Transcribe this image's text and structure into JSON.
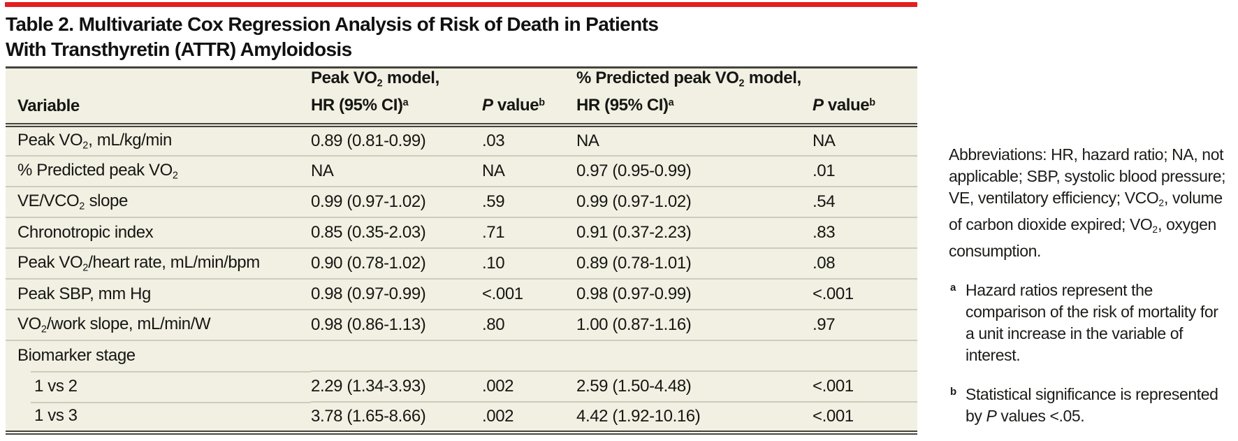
{
  "page": {
    "accent_red": "#e3201f",
    "table_bg": "#f2f0e3",
    "border_dark": "#45443c",
    "separator": "#cdcbbc"
  },
  "table": {
    "title": "Table 2. Multivariate Cox Regression Analysis of Risk of Death in Patients\nWith Transthyretin (ATTR) Amyloidosis",
    "columns": [
      {
        "label": "Variable"
      },
      {
        "label": "Peak VO~2~ model,\nHR (95% CI)^a^"
      },
      {
        "label": "*P* value^b^"
      },
      {
        "label": "% Predicted peak VO~2~ model,\nHR (95% CI)^a^"
      },
      {
        "label": "*P* value^b^"
      }
    ],
    "rows": [
      {
        "label": "Peak VO~2~, mL/kg/min",
        "group": false,
        "indent": false,
        "values": [
          "0.89 (0.81-0.99)",
          ".03",
          "NA",
          "NA"
        ]
      },
      {
        "label": "% Predicted peak VO~2~",
        "group": false,
        "indent": false,
        "values": [
          "NA",
          "NA",
          "0.97 (0.95-0.99)",
          ".01"
        ]
      },
      {
        "label": "VE/VCO~2~ slope",
        "group": false,
        "indent": false,
        "values": [
          "0.99 (0.97-1.02)",
          ".59",
          "0.99 (0.97-1.02)",
          ".54"
        ]
      },
      {
        "label": "Chronotropic index",
        "group": false,
        "indent": false,
        "values": [
          "0.85 (0.35-2.03)",
          ".71",
          "0.91 (0.37-2.23)",
          ".83"
        ]
      },
      {
        "label": "Peak VO~2~/heart rate, mL/min/bpm",
        "group": false,
        "indent": false,
        "values": [
          "0.90 (0.78-1.02)",
          ".10",
          "0.89 (0.78-1.01)",
          ".08"
        ]
      },
      {
        "label": "Peak SBP, mm Hg",
        "group": false,
        "indent": false,
        "values": [
          "0.98 (0.97-0.99)",
          "<.001",
          "0.98 (0.97-0.99)",
          "<.001"
        ]
      },
      {
        "label": "VO~2~/work slope, mL/min/W",
        "group": false,
        "indent": false,
        "values": [
          "0.98 (0.86-1.13)",
          ".80",
          "1.00 (0.87-1.16)",
          ".97"
        ]
      },
      {
        "label": "Biomarker stage",
        "group": true,
        "indent": false,
        "values": [
          "",
          "",
          "",
          ""
        ]
      },
      {
        "label": "1 vs 2",
        "group": false,
        "indent": true,
        "values": [
          "2.29 (1.34-3.93)",
          ".002",
          "2.59 (1.50-4.48)",
          "<.001"
        ]
      },
      {
        "label": "1 vs 3",
        "group": false,
        "indent": true,
        "values": [
          "3.78 (1.65-8.66)",
          ".002",
          "4.42 (1.92-10.16)",
          "<.001"
        ]
      }
    ]
  },
  "footnotes": {
    "abbreviations": "Abbreviations: HR, hazard ratio; NA, not applicable; SBP, systolic blood pressure; VE, ventilatory efficiency; VCO~2~, volume of carbon dioxide expired; VO~2~, oxygen consumption.",
    "notes": [
      {
        "marker": "a",
        "text": "Hazard ratios represent the comparison of the risk of mortality for a unit increase in the variable of interest."
      },
      {
        "marker": "b",
        "text": "Statistical significance is represented by *P* values <.05."
      }
    ]
  }
}
